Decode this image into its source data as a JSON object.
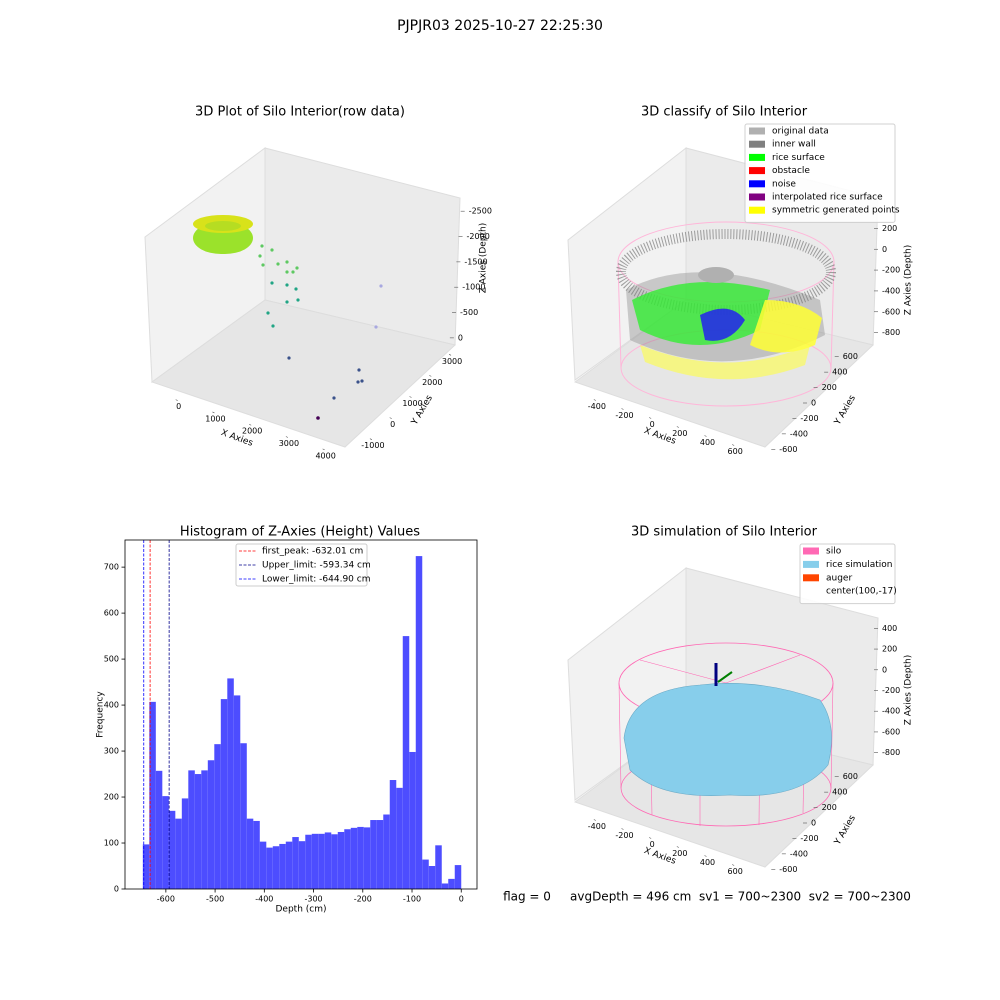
{
  "title": "PJPJR03 2025-10-27 22:25:30",
  "footer": "flag = 0     avgDepth = 496 cm  sv1 = 700~2300  sv2 = 700~2300",
  "chart_data": [
    {
      "type": "scatter3d",
      "title": "3D Plot of Silo Interior(row data)",
      "xlabel": "X Axies",
      "ylabel": "Y Axies",
      "zlabel": "Z Axies (Depth)",
      "xlim": [
        -700,
        4500
      ],
      "xticks": [
        0,
        1000,
        2000,
        3000,
        4000
      ],
      "ylim": [
        -1300,
        3300
      ],
      "yticks": [
        -1000,
        0,
        1000,
        2000,
        3000
      ],
      "zlim": [
        -2800,
        200
      ],
      "zticks": [
        0,
        -500,
        -1000,
        -1500,
        -2000,
        -2500
      ]
    },
    {
      "type": "scatter3d",
      "title": "3D classify of Silo Interior",
      "xlabel": "X Axies",
      "ylabel": "Y Axies",
      "zlabel": "Z Axies (Depth)",
      "xlim": [
        -500,
        700
      ],
      "xticks": [
        -400,
        -200,
        0,
        200,
        400,
        600
      ],
      "ylim": [
        -700,
        700
      ],
      "yticks": [
        -600,
        -400,
        -200,
        0,
        200,
        400,
        600
      ],
      "zlim": [
        -900,
        300
      ],
      "zticks": [
        -800,
        -600,
        -400,
        -200,
        0,
        200
      ],
      "series": [
        {
          "name": "original data",
          "color": "#b0b0b0"
        },
        {
          "name": "inner wall",
          "color": "#808080"
        },
        {
          "name": "rice surface",
          "color": "#00ff00"
        },
        {
          "name": "obstacle",
          "color": "#ff0000"
        },
        {
          "name": "noise",
          "color": "#0000ff"
        },
        {
          "name": "interpolated rice surface",
          "color": "#800080"
        },
        {
          "name": "symmetric generated points",
          "color": "#ffff00"
        }
      ]
    },
    {
      "type": "histogram",
      "title": "Histogram of Z-Axies (Height) Values",
      "xlabel": "Depth (cm)",
      "ylabel": "Frequency",
      "color": "#4d4dff",
      "bins": [
        -646.8,
        -633.6,
        -620.4,
        -607.2,
        -594,
        -580.8,
        -567.6,
        -554.4,
        -541.2,
        -528,
        -514.8,
        -501.6,
        -488.4,
        -475.2,
        -462,
        -448.8,
        -435.6,
        -422.4,
        -409.2,
        -396,
        -382.8,
        -369.6,
        -356.4,
        -343.2,
        -330,
        -316.8,
        -303.6,
        -290.4,
        -277.2,
        -264,
        -250.8,
        -237.6,
        -224.4,
        -211.2,
        -198,
        -184.8,
        -171.6,
        -158.4,
        -145.2,
        -132,
        -118.8,
        -105.6,
        -92.4,
        -79.2,
        -66,
        -52.8,
        -39.6,
        -26.4,
        -13.2,
        0
      ],
      "values": [
        97,
        407,
        257,
        202,
        170,
        153,
        197,
        258,
        250,
        258,
        280,
        315,
        413,
        458,
        421,
        317,
        153,
        148,
        103,
        90,
        93,
        98,
        103,
        113,
        104,
        118,
        120,
        120,
        123,
        119,
        124,
        130,
        133,
        135,
        134,
        150,
        150,
        162,
        237,
        220,
        550,
        298,
        724,
        64,
        50,
        95,
        12,
        22,
        52
      ],
      "xlim": [
        -683,
        32
      ],
      "xticks": [
        -600,
        -500,
        -400,
        -300,
        -200,
        -100,
        0
      ],
      "ylim": [
        0,
        759
      ],
      "yticks": [
        0,
        100,
        200,
        300,
        400,
        500,
        600,
        700
      ],
      "vlines": [
        {
          "value": -632.01,
          "label": "first_peak: -632.01 cm",
          "color": "#ff0000"
        },
        {
          "value": -593.34,
          "label": "Upper_limit: -593.34 cm",
          "color": "#00008b"
        },
        {
          "value": -644.9,
          "label": "Lower_limit: -644.90 cm",
          "color": "#0000ff"
        }
      ]
    },
    {
      "type": "surface3d",
      "title": "3D simulation of Silo Interior",
      "xlabel": "X Axies",
      "ylabel": "Y Axies",
      "zlabel": "Z Axies (Depth)",
      "xlim": [
        -500,
        700
      ],
      "xticks": [
        -400,
        -200,
        0,
        200,
        400,
        600
      ],
      "ylim": [
        -700,
        700
      ],
      "yticks": [
        -600,
        -400,
        -200,
        0,
        200,
        400,
        600
      ],
      "zlim": [
        -900,
        500
      ],
      "zticks": [
        -800,
        -600,
        -400,
        -200,
        0,
        200,
        400
      ],
      "series": [
        {
          "name": "silo",
          "color": "#ff69b4"
        },
        {
          "name": "rice simulation",
          "color": "#87ceeb"
        },
        {
          "name": "auger",
          "color": "#ff4500"
        },
        {
          "name": "center(100,-17)",
          "color": "#ffffff"
        }
      ]
    }
  ]
}
